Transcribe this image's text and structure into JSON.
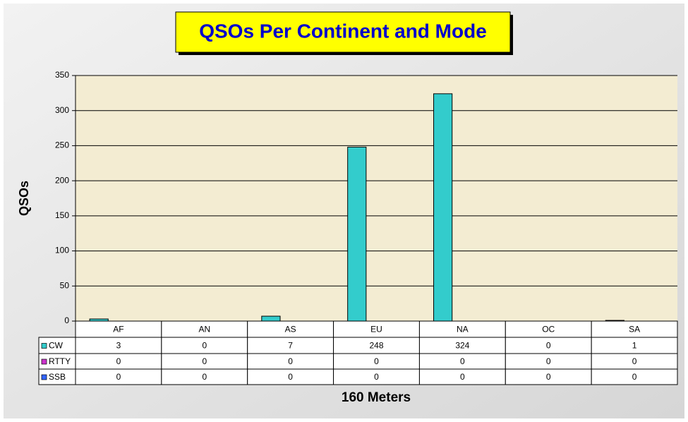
{
  "chart_data": {
    "type": "bar",
    "title": "QSOs Per Continent and Mode",
    "y_label": "QSOs",
    "x_label": "160 Meters",
    "categories": [
      "AF",
      "AN",
      "AS",
      "EU",
      "NA",
      "OC",
      "SA"
    ],
    "series": [
      {
        "name": "CW",
        "color": "#33cccc",
        "values": [
          3,
          0,
          7,
          248,
          324,
          0,
          1
        ]
      },
      {
        "name": "RTTY",
        "color": "#cc33cc",
        "values": [
          0,
          0,
          0,
          0,
          0,
          0,
          0
        ]
      },
      {
        "name": "SSB",
        "color": "#3366ff",
        "values": [
          0,
          0,
          0,
          0,
          0,
          0,
          0
        ]
      }
    ],
    "ylim": [
      0,
      350
    ],
    "yticks": [
      0,
      50,
      100,
      150,
      200,
      250,
      300,
      350
    ],
    "grid": true
  }
}
